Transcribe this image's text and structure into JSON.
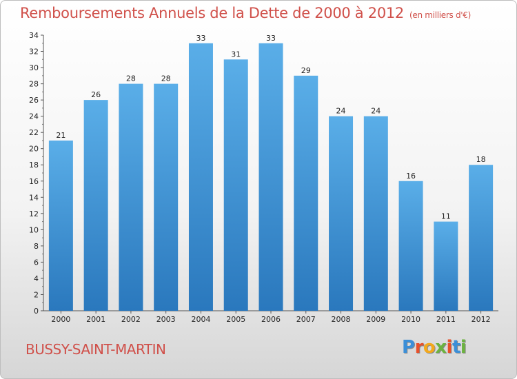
{
  "header": {
    "title": "Remboursements Annuels de la Dette de 2000 à 2012",
    "subtitle": "(en milliers d'€)"
  },
  "footer": {
    "town": "BUSSY-SAINT-MARTIN",
    "logo_letters": [
      "P",
      "r",
      "o",
      "x",
      "i",
      "t",
      "i"
    ],
    "logo_colors": [
      "#3b8fd8",
      "#e8502a",
      "#f3a81c",
      "#6cb33f",
      "#e8502a",
      "#3b8fd8",
      "#6cb33f"
    ]
  },
  "colors": {
    "bar_top": "#5aaee8",
    "bar_bottom": "#2a78bd",
    "title": "#d0504a"
  },
  "chart_data": {
    "type": "bar",
    "title": "Remboursements Annuels de la Dette de 2000 à 2012",
    "subtitle": "(en milliers d'€)",
    "categories": [
      "2000",
      "2001",
      "2002",
      "2003",
      "2004",
      "2005",
      "2006",
      "2007",
      "2008",
      "2009",
      "2010",
      "2011",
      "2012"
    ],
    "values": [
      21,
      26,
      28,
      28,
      33,
      31,
      33,
      29,
      24,
      24,
      16,
      11,
      18
    ],
    "ylim": [
      0,
      34
    ],
    "yticks": [
      0,
      2,
      4,
      6,
      8,
      10,
      12,
      14,
      16,
      18,
      20,
      22,
      24,
      26,
      28,
      30,
      32,
      34
    ],
    "grid": false,
    "legend": "none"
  }
}
